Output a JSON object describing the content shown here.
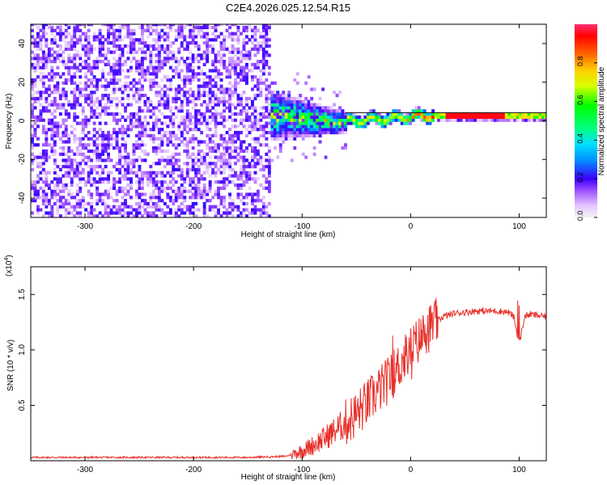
{
  "title": "C2E4.2026.025.12.54.R15",
  "chart_data": [
    {
      "type": "heatmap",
      "title": "C2E4.2026.025.12.54.R15",
      "xlabel": "Height of straight line (km)",
      "ylabel": "Frequency (Hz)",
      "xlim": [
        -350,
        125
      ],
      "ylim": [
        -50,
        50
      ],
      "xticks": [
        -300,
        -200,
        -100,
        0,
        100
      ],
      "yticks": [
        -40,
        -20,
        0,
        20,
        40
      ],
      "colorbar": {
        "label": "Normalized spectral amplitude",
        "range": [
          0,
          1
        ],
        "ticks": [
          "0.0",
          "0.2",
          "0.4",
          "0.6",
          "0.8"
        ],
        "tick_values": [
          0.0,
          0.2,
          0.4,
          0.6,
          0.8
        ]
      },
      "description_regions": [
        {
          "x_range": [
            -350,
            -130
          ],
          "freq_range": [
            -50,
            50
          ],
          "amplitude": "low (0.0-0.25), scattered noise"
        },
        {
          "x_range": [
            -130,
            -60
          ],
          "freq_range": [
            -20,
            15
          ],
          "amplitude": "mixed, strong near 0 Hz"
        },
        {
          "x_range": [
            -60,
            125
          ],
          "freq_center": 2,
          "amplitude": "high (0.6-1.0), narrow line"
        }
      ]
    },
    {
      "type": "line",
      "xlabel": "Height of straight line (km)",
      "ylabel": "SNR (10 * v/v)",
      "scale_label": "(x10",
      "scale_exponent": "4",
      "xlim": [
        -350,
        125
      ],
      "ylim": [
        0,
        1.75
      ],
      "xticks": [
        -300,
        -200,
        -100,
        0,
        100
      ],
      "yticks": [
        0.5,
        1.0,
        1.5
      ],
      "ytick_labels": [
        "0.5",
        "1.0",
        "1.5"
      ],
      "color": "#e8302a",
      "series": [
        {
          "name": "SNR",
          "x": [
            -350,
            -300,
            -250,
            -200,
            -150,
            -115,
            -100,
            -90,
            -80,
            -70,
            -60,
            -50,
            -40,
            -30,
            -20,
            -10,
            0,
            10,
            20,
            30,
            40,
            50,
            60,
            70,
            80,
            90,
            95,
            100,
            105,
            110,
            125
          ],
          "y": [
            0.03,
            0.03,
            0.03,
            0.03,
            0.03,
            0.04,
            0.09,
            0.14,
            0.2,
            0.27,
            0.34,
            0.42,
            0.52,
            0.63,
            0.73,
            0.86,
            1.0,
            1.12,
            1.23,
            1.3,
            1.33,
            1.34,
            1.35,
            1.35,
            1.35,
            1.34,
            1.3,
            1.05,
            1.3,
            1.32,
            1.3
          ]
        }
      ]
    }
  ]
}
